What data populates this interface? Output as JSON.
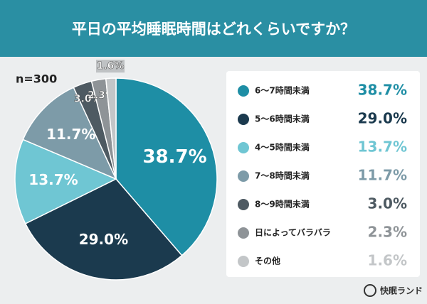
{
  "chart_data": {
    "type": "pie",
    "title": "平日の平均睡眠時間はどれくらいですか？",
    "annotation": "n=300",
    "brand": "快眠ランド",
    "categories": [
      "6〜7時間未満",
      "5〜6時間未満",
      "4〜5時間未満",
      "7〜8時間未満",
      "8〜9時間未満",
      "日によってバラバラ",
      "その他"
    ],
    "values": [
      38.7,
      29.0,
      13.7,
      11.7,
      3.0,
      2.3,
      1.6
    ],
    "value_labels": [
      "38.7%",
      "29.0%",
      "13.7%",
      "11.7%",
      "3.0%",
      "2.3%",
      "1.6%"
    ],
    "colors": [
      "#1e8ea5",
      "#1b3a4e",
      "#6fc6d3",
      "#7d9ba8",
      "#4e5a62",
      "#8e9397",
      "#c3c6c8"
    ]
  }
}
